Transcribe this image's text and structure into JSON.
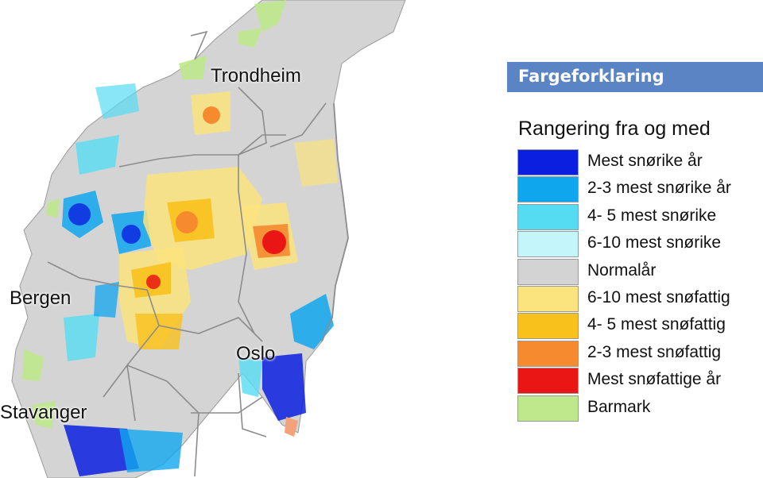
{
  "map": {
    "cities": [
      {
        "name": "Trondheim"
      },
      {
        "name": "Bergen"
      },
      {
        "name": "Oslo"
      },
      {
        "name": "Stavanger"
      }
    ]
  },
  "legend": {
    "header": "Fargeforklaring",
    "subtitle": "Rangering fra og med",
    "items": [
      {
        "label": "Mest snørike år",
        "color": "#0a1fe0"
      },
      {
        "label": "2-3 mest snørike år",
        "color": "#10a6ee"
      },
      {
        "label": "4- 5 mest snørike",
        "color": "#55dcf2"
      },
      {
        "label": "6-10 mest snørike",
        "color": "#c4f5fa"
      },
      {
        "label": "Normalår",
        "color": "#d3d3d3"
      },
      {
        "label": "6-10 mest snøfattig",
        "color": "#fbe37e"
      },
      {
        "label": "4- 5 mest snøfattig",
        "color": "#f9c11b"
      },
      {
        "label": "2-3 mest snøfattig",
        "color": "#f58a2e"
      },
      {
        "label": "Mest snøfattige år",
        "color": "#ea1515"
      },
      {
        "label": "Barmark",
        "color": "#bfe88c"
      }
    ]
  }
}
